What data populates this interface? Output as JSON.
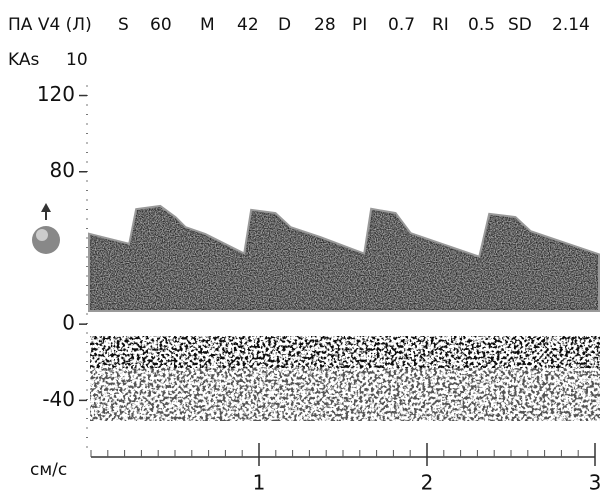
{
  "header": {
    "study": "ПА V4 (Л)",
    "readings": [
      {
        "label": "S",
        "value": 60
      },
      {
        "label": "M",
        "value": 42
      },
      {
        "label": "D",
        "value": 28
      },
      {
        "label": "PI",
        "value": 0.7
      },
      {
        "label": "RI",
        "value": 0.5
      },
      {
        "label": "SD",
        "value": 2.14
      }
    ],
    "kas": {
      "label": "KAs",
      "value": 10
    }
  },
  "chart_data": {
    "type": "doppler",
    "unit": "см/с",
    "ylim": [
      -65,
      125
    ],
    "yticks": [
      -40,
      0,
      80,
      120
    ],
    "xlim": [
      0,
      3
    ],
    "xticks": [
      1,
      2,
      3
    ]
  }
}
